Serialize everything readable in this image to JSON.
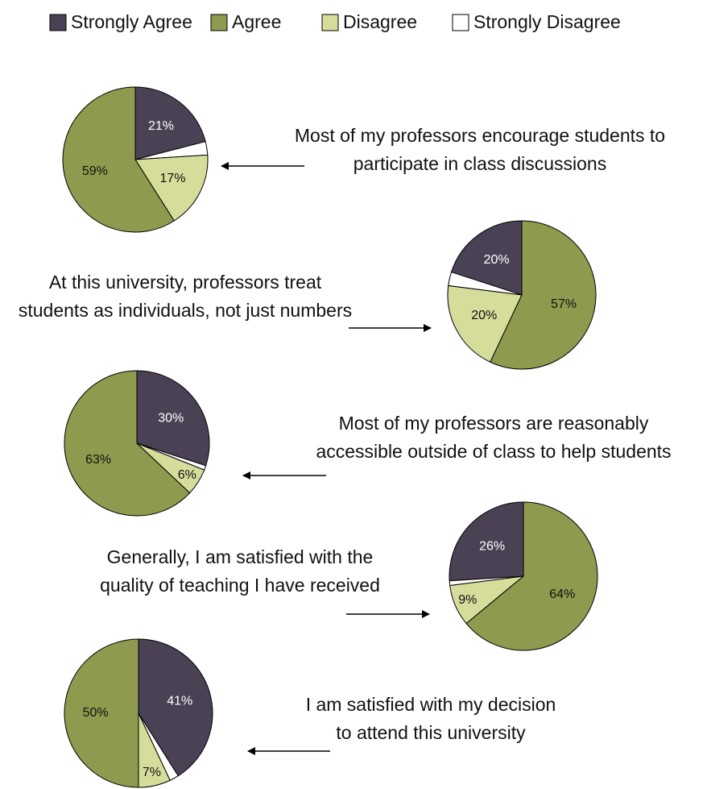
{
  "legend": {
    "categories": [
      "Strongly Agree",
      "Agree",
      "Disagree",
      "Strongly Disagree"
    ],
    "colors": [
      "#4b4155",
      "#8e9a4e",
      "#d6dd9a",
      "#ffffff"
    ]
  },
  "chart_data": [
    {
      "type": "pie",
      "title": [
        "Most of my professors encourage students to",
        "participate in class discussions"
      ],
      "values": [
        21,
        59,
        17,
        3
      ],
      "value_labels": [
        "21%",
        "59%",
        "17%",
        null
      ]
    },
    {
      "type": "pie",
      "title": [
        "At this university, professors treat",
        "students as individuals, not just numbers"
      ],
      "values": [
        20,
        57,
        20,
        3
      ],
      "value_labels": [
        "20%",
        "57%",
        "20%",
        null
      ]
    },
    {
      "type": "pie",
      "title": [
        "Most of my professors are reasonably",
        "accessible outside of class to help students"
      ],
      "values": [
        30,
        63,
        6,
        1
      ],
      "value_labels": [
        "30%",
        "63%",
        "6%",
        null
      ]
    },
    {
      "type": "pie",
      "title": [
        "Generally, I am satisfied with the",
        "quality of teaching I have received"
      ],
      "values": [
        26,
        64,
        9,
        1
      ],
      "value_labels": [
        "26%",
        "64%",
        "9%",
        null
      ]
    },
    {
      "type": "pie",
      "title": [
        "I am satisfied with my decision",
        "to attend this university"
      ],
      "values": [
        41,
        50,
        7,
        2
      ],
      "value_labels": [
        "41%",
        "50%",
        "7%",
        null
      ]
    }
  ]
}
